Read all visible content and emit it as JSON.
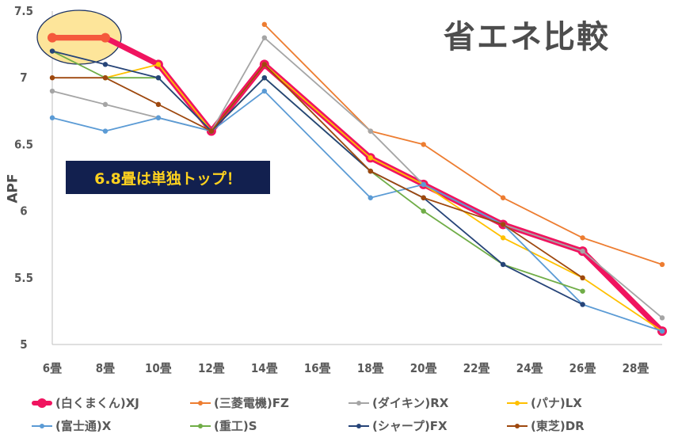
{
  "chart_data": {
    "type": "line",
    "title": "省エネ比較",
    "xlabel": "",
    "ylabel": "APF",
    "xlim": [
      6,
      29
    ],
    "ylim": [
      5,
      7.5
    ],
    "x_ticks": [
      "6畳",
      "8畳",
      "10畳",
      "12畳",
      "14畳",
      "16畳",
      "18畳",
      "20畳",
      "22畳",
      "24畳",
      "26畳",
      "28畳"
    ],
    "x_tick_values": [
      6,
      8,
      10,
      12,
      14,
      16,
      18,
      20,
      22,
      24,
      26,
      28
    ],
    "y_ticks": [
      "5",
      "5.5",
      "6",
      "6.5",
      "7",
      "7.5"
    ],
    "y_tick_values": [
      5,
      5.5,
      6,
      6.5,
      7,
      7.5
    ],
    "grid": false,
    "legend_position": "bottom",
    "annotation": "6.8畳は単独トップ！",
    "series": [
      {
        "name": "(白くまくん)XJ",
        "color": "#f0145f",
        "highlight": true,
        "x": [
          6,
          8,
          10,
          12,
          14,
          18,
          20,
          23,
          26,
          29
        ],
        "values": [
          7.3,
          7.3,
          7.1,
          6.6,
          7.1,
          6.4,
          6.2,
          5.9,
          5.7,
          5.1
        ]
      },
      {
        "name": "(三菱電機)FZ",
        "color": "#ed7d31",
        "x": [
          14,
          18,
          20,
          23,
          26,
          29
        ],
        "values": [
          7.4,
          6.6,
          6.5,
          6.1,
          5.8,
          5.6
        ]
      },
      {
        "name": "(ダイキン)RX",
        "color": "#a5a5a5",
        "x": [
          6,
          8,
          10,
          12,
          14,
          18,
          20,
          23,
          26,
          29
        ],
        "values": [
          6.9,
          6.8,
          6.7,
          6.6,
          7.3,
          6.6,
          6.2,
          5.9,
          5.7,
          5.2
        ]
      },
      {
        "name": "(パナ)LX",
        "color": "#ffc000",
        "x": [
          8,
          10,
          12,
          14,
          18,
          20,
          23,
          26,
          29
        ],
        "values": [
          7.0,
          7.1,
          6.6,
          7.1,
          6.4,
          6.2,
          5.8,
          5.5,
          5.1
        ]
      },
      {
        "name": "(富士通)X",
        "color": "#5b9bd5",
        "x": [
          6,
          8,
          10,
          12,
          14,
          18,
          20,
          23,
          26,
          29
        ],
        "values": [
          6.7,
          6.6,
          6.7,
          6.6,
          6.9,
          6.1,
          6.2,
          5.9,
          5.3,
          5.1
        ]
      },
      {
        "name": "(重工)S",
        "color": "#70ad47",
        "x": [
          6,
          8,
          10,
          12,
          14,
          18,
          20,
          23,
          26
        ],
        "values": [
          7.2,
          7.0,
          7.0,
          6.6,
          7.0,
          6.3,
          6.0,
          5.6,
          5.4
        ]
      },
      {
        "name": "(シャープ)FX",
        "color": "#264478",
        "x": [
          6,
          8,
          10,
          12,
          14,
          18,
          20,
          23,
          26
        ],
        "values": [
          7.2,
          7.1,
          7.0,
          6.6,
          7.0,
          6.3,
          6.1,
          5.6,
          5.3
        ]
      },
      {
        "name": "(東芝)DR",
        "color": "#9e480e",
        "x": [
          6,
          8,
          10,
          12,
          14,
          18,
          20,
          23,
          26
        ],
        "values": [
          7.0,
          7.0,
          6.8,
          6.6,
          7.1,
          6.3,
          6.1,
          5.9,
          5.5
        ]
      }
    ],
    "highlight_color": "#f55a3c",
    "ellipse_fill": "#fde59a",
    "ellipse_stroke": "#1f3564"
  }
}
